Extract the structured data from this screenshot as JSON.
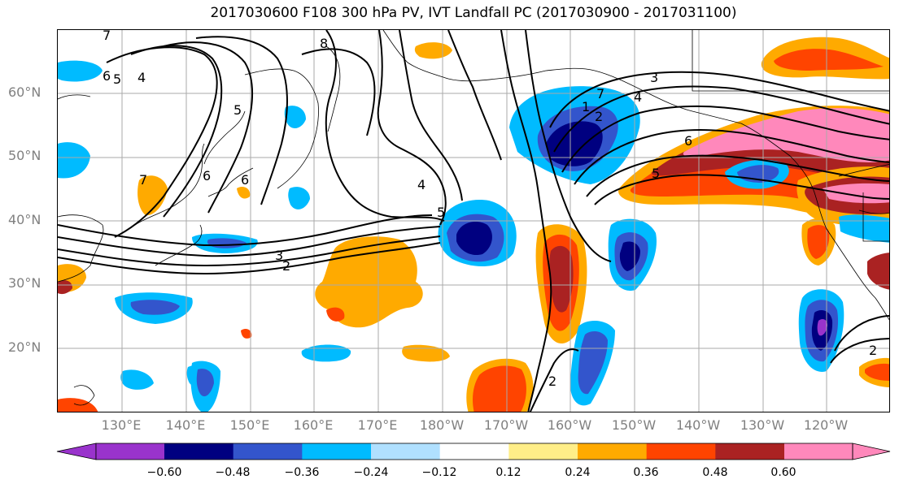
{
  "title": "2017030600 F108 300 hPa PV, IVT Landfall PC (2017030900 - 2017031100)",
  "lat_labels": [
    "60°N",
    "50°N",
    "40°N",
    "30°N",
    "20°N"
  ],
  "lon_labels": [
    "130°E",
    "140°E",
    "150°E",
    "160°E",
    "170°E",
    "180°W",
    "170°W",
    "160°W",
    "150°W",
    "140°W",
    "130°W",
    "120°W"
  ],
  "colorbar": {
    "ticks": [
      "−0.60",
      "−0.48",
      "−0.36",
      "−0.24",
      "−0.12",
      "0.12",
      "0.24",
      "0.36",
      "0.48",
      "0.60"
    ],
    "colors": [
      "#9933cc",
      "#000080",
      "#3355cc",
      "#00bbff",
      "#b0e0ff",
      "#ffffff",
      "#ffee88",
      "#ffaa00",
      "#ff4400",
      "#aa2222",
      "#ff88bb"
    ]
  },
  "contour_labels": [
    "7",
    "6",
    "5",
    "4",
    "8",
    "5",
    "6",
    "7",
    "6",
    "4",
    "5",
    "3",
    "2",
    "7",
    "1",
    "2",
    "3",
    "4",
    "6",
    "5",
    "5",
    "2",
    "2"
  ],
  "colors": {
    "frame": "#000000",
    "grid": "#aaaaaa",
    "axis_label": "#808080"
  }
}
